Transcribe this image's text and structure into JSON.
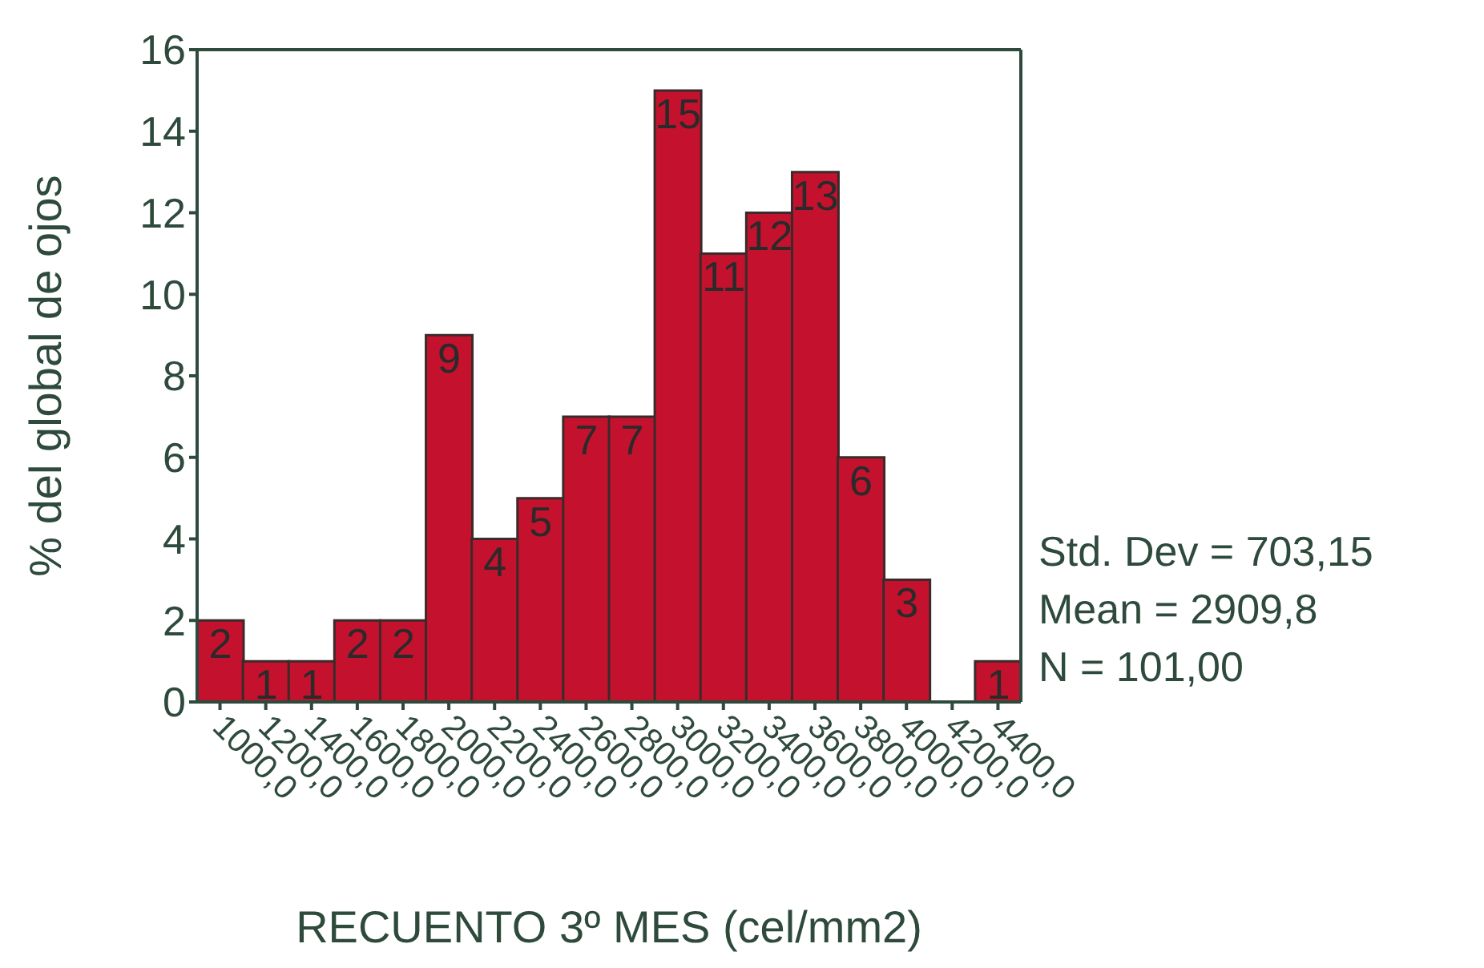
{
  "chart_data": {
    "type": "histogram",
    "xlabel": "RECUENTO 3º MES (cel/mm2)",
    "ylabel": "% del global de ojos",
    "bins": [
      900,
      1100,
      1300,
      1500,
      1700,
      1900,
      2100,
      2300,
      2500,
      2700,
      2900,
      3100,
      3300,
      3500,
      3700,
      3900,
      4100,
      4300,
      4500
    ],
    "values": [
      2,
      1,
      1,
      2,
      2,
      9,
      4,
      5,
      7,
      7,
      15,
      11,
      12,
      13,
      6,
      3,
      0,
      1
    ],
    "value_labels": [
      "2",
      "1",
      "1",
      "2",
      "2",
      "9",
      "4",
      "5",
      "7",
      "7",
      "15",
      "11",
      "12",
      "13",
      "6",
      "3",
      null,
      "1"
    ],
    "color": "#c4122e",
    "xlim": [
      900,
      4500
    ],
    "xticks": [
      {
        "value": 1000,
        "label": "1000,0"
      },
      {
        "value": 1200,
        "label": "1200,0"
      },
      {
        "value": 1400,
        "label": "1400,0"
      },
      {
        "value": 1600,
        "label": "1600,0"
      },
      {
        "value": 1800,
        "label": "1800,0"
      },
      {
        "value": 2000,
        "label": "2000,0"
      },
      {
        "value": 2200,
        "label": "2200,0"
      },
      {
        "value": 2400,
        "label": "2400,0"
      },
      {
        "value": 2600,
        "label": "2600,0"
      },
      {
        "value": 2800,
        "label": "2800,0"
      },
      {
        "value": 3000,
        "label": "3000,0"
      },
      {
        "value": 3200,
        "label": "3200,0"
      },
      {
        "value": 3400,
        "label": "3400,0"
      },
      {
        "value": 3600,
        "label": "3600,0"
      },
      {
        "value": 3800,
        "label": "3800,0"
      },
      {
        "value": 4000,
        "label": "4000,0"
      },
      {
        "value": 4200,
        "label": "4200,0"
      },
      {
        "value": 4400,
        "label": "4400,0"
      }
    ],
    "ylim": [
      0,
      16
    ],
    "yticks": [
      0,
      2,
      4,
      6,
      8,
      10,
      12,
      14,
      16
    ],
    "grid": false,
    "legend": false,
    "annotations": [
      "Std. Dev = 703,15",
      "Mean = 2909,8",
      "N = 101,00"
    ]
  }
}
